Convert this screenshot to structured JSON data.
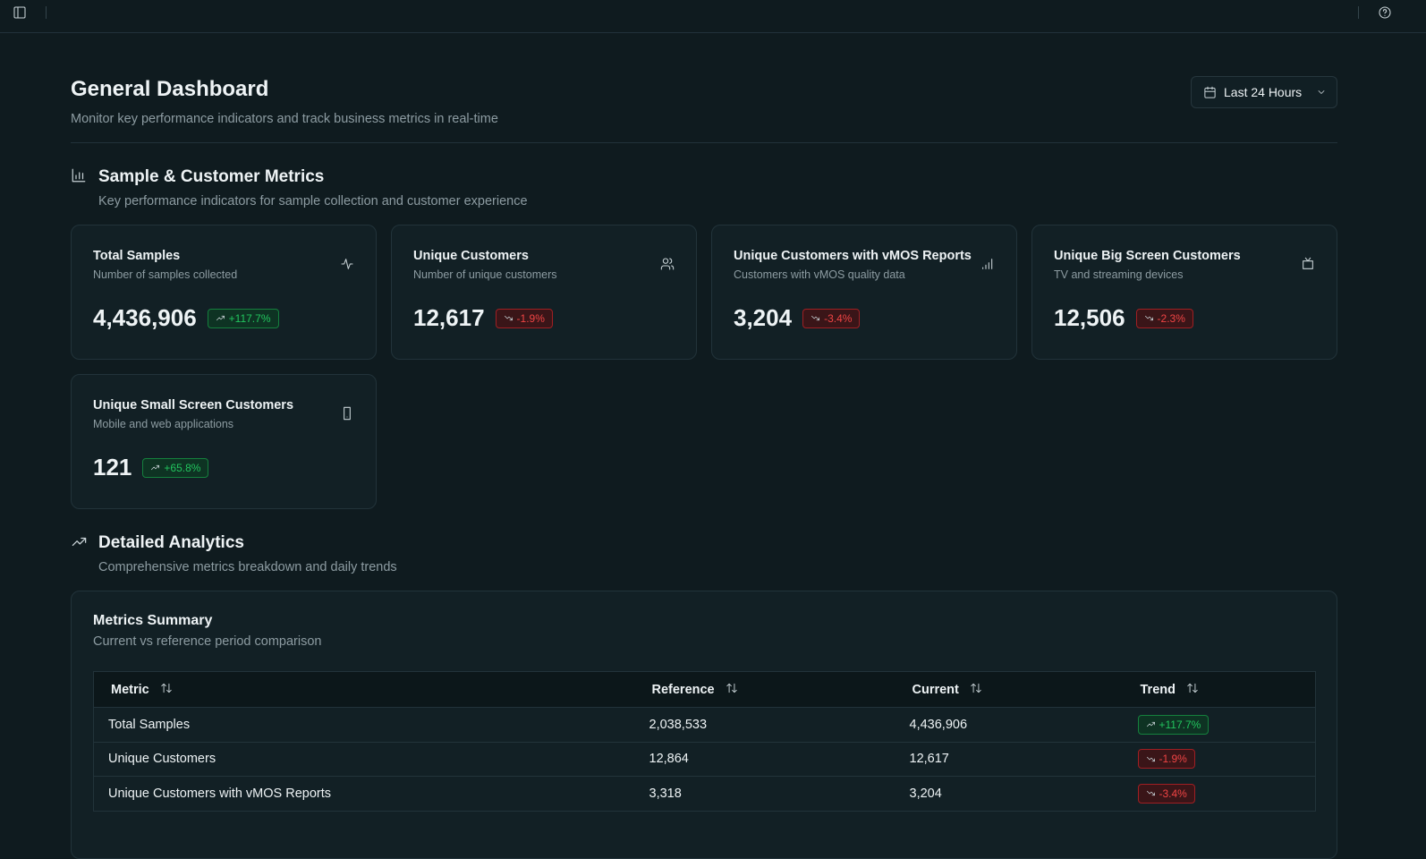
{
  "header": {
    "title": "General Dashboard",
    "subtitle": "Monitor key performance indicators and track business metrics in real-time",
    "range_button": "Last 24 Hours"
  },
  "sections": [
    {
      "title": "Sample & Customer Metrics",
      "subtitle": "Key performance indicators for sample collection and customer experience"
    },
    {
      "title": "Detailed Analytics",
      "subtitle": "Comprehensive metrics breakdown and daily trends"
    }
  ],
  "cards": [
    {
      "title": "Total Samples",
      "subtitle": "Number of samples collected",
      "value": "4,436,906",
      "change": "+117.7%"
    },
    {
      "title": "Unique Customers",
      "subtitle": "Number of unique customers",
      "value": "12,617",
      "change": "-1.9%"
    },
    {
      "title": "Unique Customers with vMOS Reports",
      "subtitle": "Customers with vMOS quality data",
      "value": "3,204",
      "change": "-3.4%"
    },
    {
      "title": "Unique Big Screen Customers",
      "subtitle": "TV and streaming devices",
      "value": "12,506",
      "change": "-2.3%"
    },
    {
      "title": "Unique Small Screen Customers",
      "subtitle": "Mobile and web applications",
      "value": "121",
      "change": "+65.8%"
    }
  ],
  "summary": {
    "title": "Metrics Summary",
    "subtitle": "Current vs reference period comparison",
    "columns": [
      "Metric",
      "Reference",
      "Current",
      "Trend"
    ],
    "rows": [
      [
        "Total Samples",
        "2,038,533",
        "4,436,906",
        "+117.7%"
      ],
      [
        "Unique Customers",
        "12,864",
        "12,617",
        "-1.9%"
      ],
      [
        "Unique Customers with vMOS Reports",
        "3,318",
        "3,204",
        "-3.4%"
      ]
    ]
  }
}
